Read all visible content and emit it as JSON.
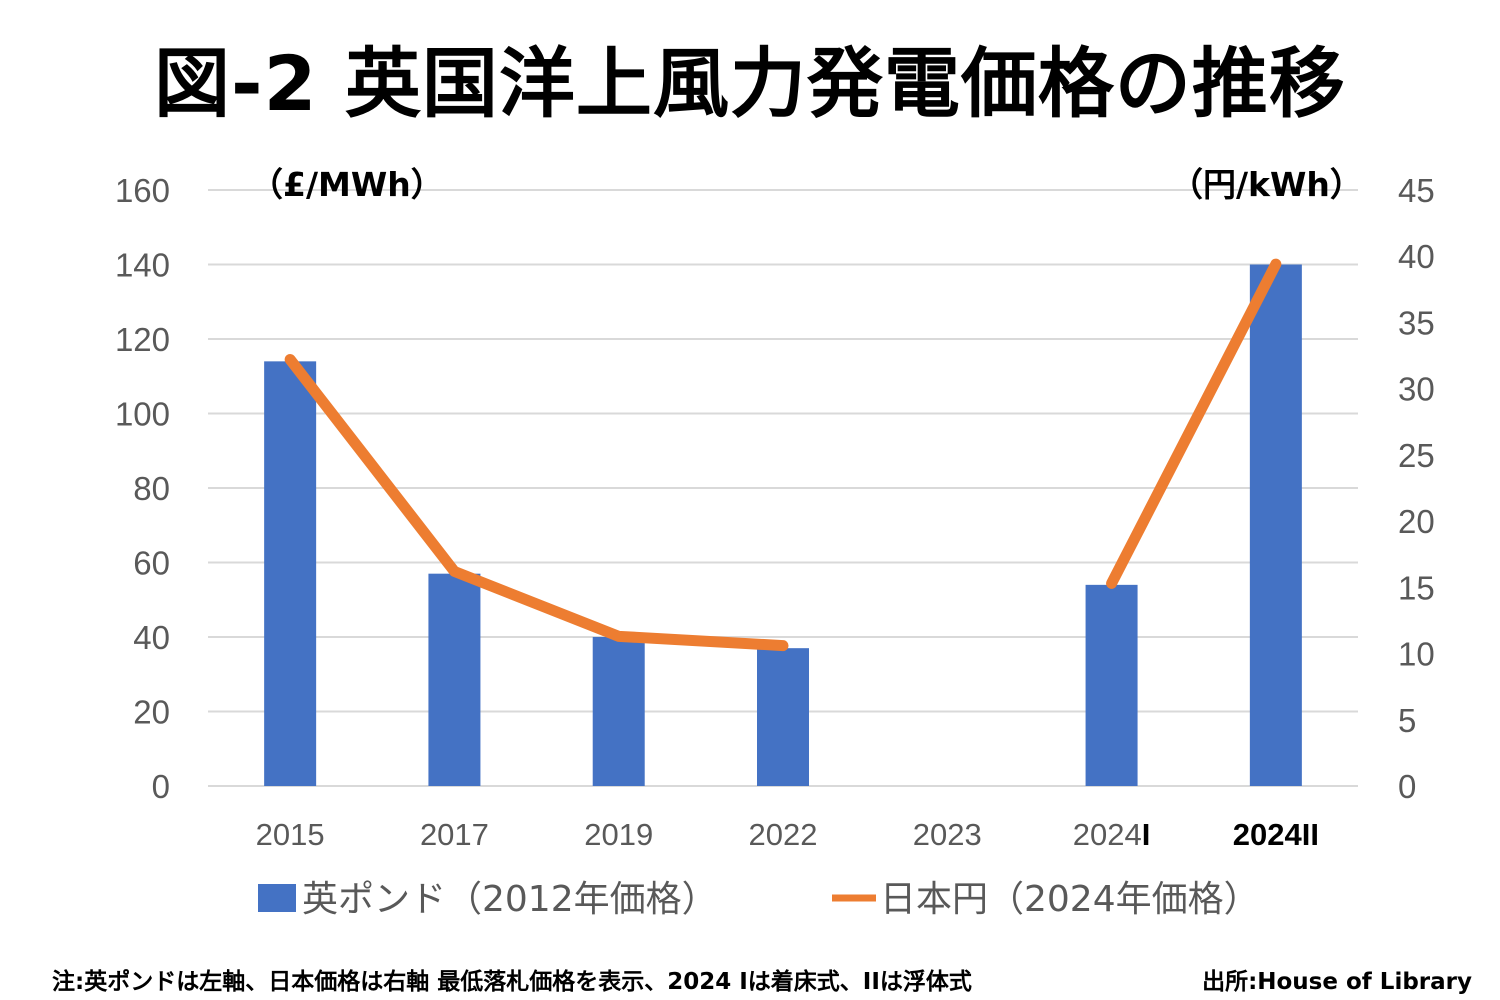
{
  "title": "図-2 英国洋上風力発電価格の推移",
  "footer": {
    "note": "注:英ポンドは左軸、日本価格は右軸 最低落札価格を表示、2024 Iは着床式、IIは浮体式",
    "source": "出所:House of Library"
  },
  "colors": {
    "bar": "#4472C4",
    "line": "#ED7D31",
    "grid": "#D9D9D9",
    "tick": "#595959"
  },
  "chart_data": {
    "type": "bar",
    "title": "図-2 英国洋上風力発電価格の推移",
    "categories": [
      "2015",
      "2017",
      "2019",
      "2022",
      "2023",
      "2024",
      "2024II"
    ],
    "category_labels": [
      {
        "text": "2015",
        "suffix": ""
      },
      {
        "text": "2017",
        "suffix": ""
      },
      {
        "text": "2019",
        "suffix": ""
      },
      {
        "text": "2022",
        "suffix": ""
      },
      {
        "text": "2023",
        "suffix": ""
      },
      {
        "text": "2024",
        "suffix": "I"
      },
      {
        "text": "2024II",
        "suffix": ""
      }
    ],
    "series": [
      {
        "name": "英ポンド（2012年価格）",
        "type": "bar",
        "axis": "left",
        "values": [
          114,
          57,
          40,
          37,
          null,
          54,
          140
        ]
      },
      {
        "name": "日本円（2024年価格）",
        "type": "line",
        "axis": "right",
        "values": [
          32.2,
          16.2,
          11.3,
          10.6,
          null,
          15.3,
          39.4
        ]
      }
    ],
    "left_axis": {
      "label": "（£/MWh）",
      "ylim": [
        0,
        160
      ],
      "ticks": [
        "0",
        "20",
        "40",
        "60",
        "80",
        "100",
        "120",
        "140",
        "160"
      ]
    },
    "right_axis": {
      "label": "（円/kWh）",
      "ylim": [
        0,
        45
      ],
      "ticks": [
        "0",
        "5",
        "10",
        "15",
        "20",
        "25",
        "30",
        "35",
        "40",
        "45"
      ]
    },
    "grid": true,
    "legend_position": "bottom"
  }
}
